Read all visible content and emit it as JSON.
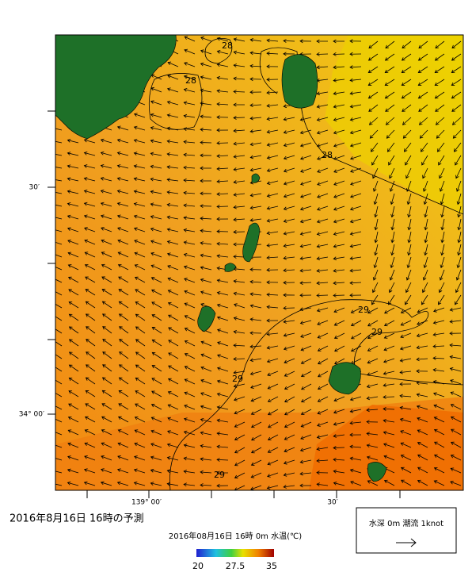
{
  "map": {
    "contour_labels": [
      "28",
      "28",
      "28",
      "29",
      "29",
      "29",
      "29"
    ],
    "lat_labels": [
      "30′",
      "34° 00′"
    ],
    "lon_labels": [
      "139° 00′",
      "30′"
    ],
    "caption": "2016年8月16日  16時の予測",
    "colorbar": {
      "title": "2016年08月16日 16時 0m 水温(℃)",
      "ticks": [
        "20",
        "27.5",
        "35"
      ]
    },
    "legend": "水深 0m 潮流 1knot"
  }
}
